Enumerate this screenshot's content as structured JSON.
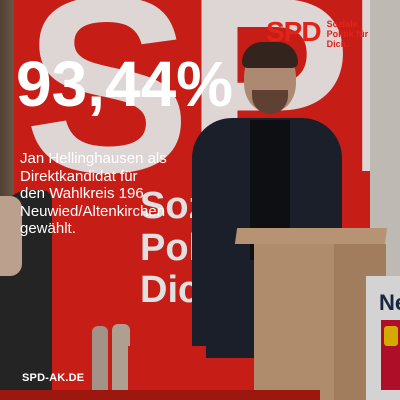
{
  "brand": {
    "logo_text": "SPD",
    "slogan": [
      "Soziale",
      "Politik für",
      "Dich."
    ],
    "color": "#e2231a"
  },
  "background": {
    "banner_text": "SPD",
    "banner_slogan": [
      "Soz",
      "Politi",
      "Dich"
    ],
    "sign_text": "Ne"
  },
  "headline": "93,44%",
  "caption": [
    "Jan Hellinghausen als",
    "Direktkandidat für",
    "den Wahlkreis 196",
    "Neuwied/Altenkirchen",
    "gewählt."
  ],
  "footer": {
    "url": "SPD-AK.DE"
  }
}
